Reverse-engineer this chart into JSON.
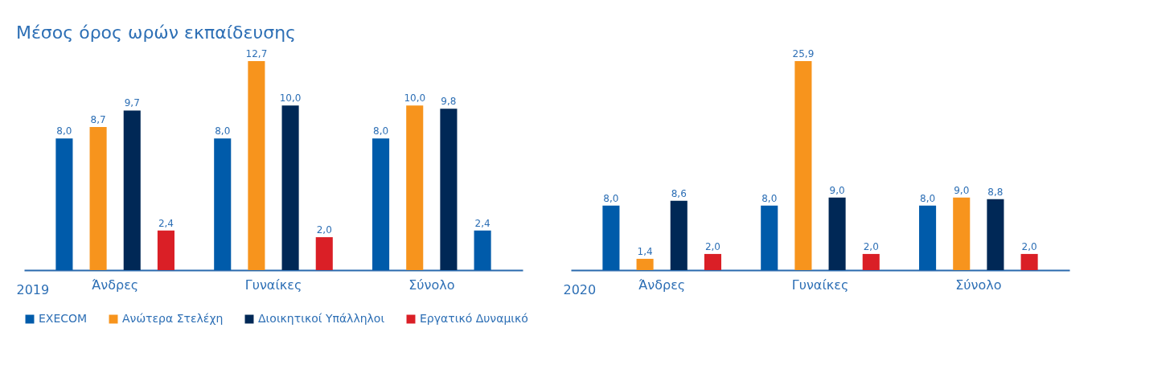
{
  "chart_data": [
    {
      "type": "bar",
      "title": "Μέσος όρος ωρών εκπαίδευσης",
      "xlabel": "2019",
      "categories": [
        "Άνδρες",
        "Γυναίκες",
        "Σύνολο"
      ],
      "legend": "bottom left",
      "series": [
        {
          "name": "EXECOM",
          "color": "#005baa",
          "values": [
            8.0,
            8.0,
            8.0
          ],
          "value_labels": [
            "8,0",
            "8,0",
            "8,0"
          ]
        },
        {
          "name": "Ανώτερα Στελέχη",
          "color": "#f7941d",
          "values": [
            8.7,
            12.7,
            10.0
          ],
          "value_labels": [
            "8,7",
            "12,7",
            "10,0"
          ]
        },
        {
          "name": "Διοικητικοί Υπάλληλοι",
          "color": "#002856",
          "values": [
            9.7,
            10.0,
            9.8
          ],
          "value_labels": [
            "9,7",
            "10,0",
            "9,8"
          ]
        },
        {
          "name": "Εργατικό Δυναμικό",
          "color": "#da1f26",
          "colors": [
            "#da1f26",
            "#da1f26",
            "#005baa"
          ],
          "values": [
            2.4,
            2.0,
            2.4
          ],
          "value_labels": [
            "2,4",
            "2,0",
            "2,4"
          ]
        }
      ]
    },
    {
      "type": "bar",
      "xlabel": "2020",
      "categories": [
        "Άνδρες",
        "Γυναίκες",
        "Σύνολο"
      ],
      "legend": "bottom left",
      "series": [
        {
          "name": "EXECOM",
          "color": "#005baa",
          "values": [
            8.0,
            8.0,
            8.0
          ],
          "value_labels": [
            "8,0",
            "8,0",
            "8,0"
          ]
        },
        {
          "name": "Ανώτερα Στελέχη",
          "color": "#f7941d",
          "values": [
            1.4,
            25.9,
            9.0
          ],
          "value_labels": [
            "1,4",
            "25,9",
            "9,0"
          ]
        },
        {
          "name": "Διοικητικοί Υπάλληλοι",
          "color": "#002856",
          "values": [
            8.6,
            9.0,
            8.8
          ],
          "value_labels": [
            "8,6",
            "9,0",
            "8,8"
          ]
        },
        {
          "name": "Εργατικό Δυναμικό",
          "color": "#da1f26",
          "values": [
            2.0,
            2.0,
            2.0
          ],
          "value_labels": [
            "2,0",
            "2,0",
            "2,0"
          ]
        }
      ]
    }
  ]
}
